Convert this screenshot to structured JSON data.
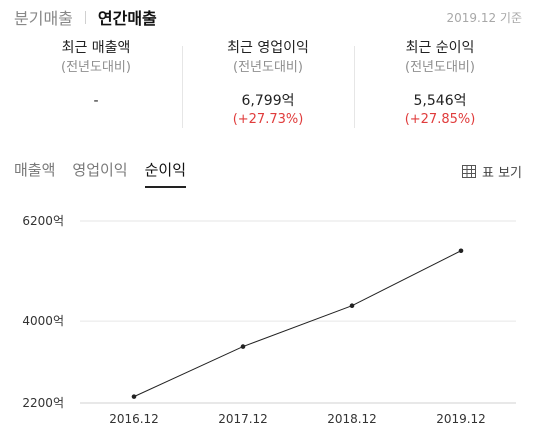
{
  "header": {
    "tabs": [
      {
        "label": "분기매출",
        "active": false
      },
      {
        "label": "연간매출",
        "active": true
      }
    ],
    "basis": "2019.12 기준"
  },
  "metrics": [
    {
      "title": "최근 매출액",
      "sub": "(전년도대비)",
      "value": "-",
      "change": ""
    },
    {
      "title": "최근 영업이익",
      "sub": "(전년도대비)",
      "value": "6,799억",
      "change": "(+27.73%)"
    },
    {
      "title": "최근 순이익",
      "sub": "(전년도대비)",
      "value": "5,546억",
      "change": "(+27.85%)"
    }
  ],
  "sub_tabs": [
    {
      "label": "매출액",
      "active": false
    },
    {
      "label": "영업이익",
      "active": false
    },
    {
      "label": "순이익",
      "active": true
    }
  ],
  "table_view": {
    "icon": "table-icon",
    "label": "표 보기"
  },
  "colors": {
    "accent_red": "#e03c3c",
    "line": "#222222",
    "grid": "#e6e6e6"
  },
  "chart_data": {
    "type": "line",
    "categories": [
      "2016.12",
      "2017.12",
      "2018.12",
      "2019.12"
    ],
    "values": [
      2340,
      3440,
      4338,
      5546
    ],
    "unit": "억",
    "yticks": [
      "6200억",
      "4000억",
      "2200억"
    ],
    "ytick_values": [
      6200,
      4000,
      2200
    ],
    "ylim": [
      2200,
      6200
    ],
    "grid": true
  }
}
